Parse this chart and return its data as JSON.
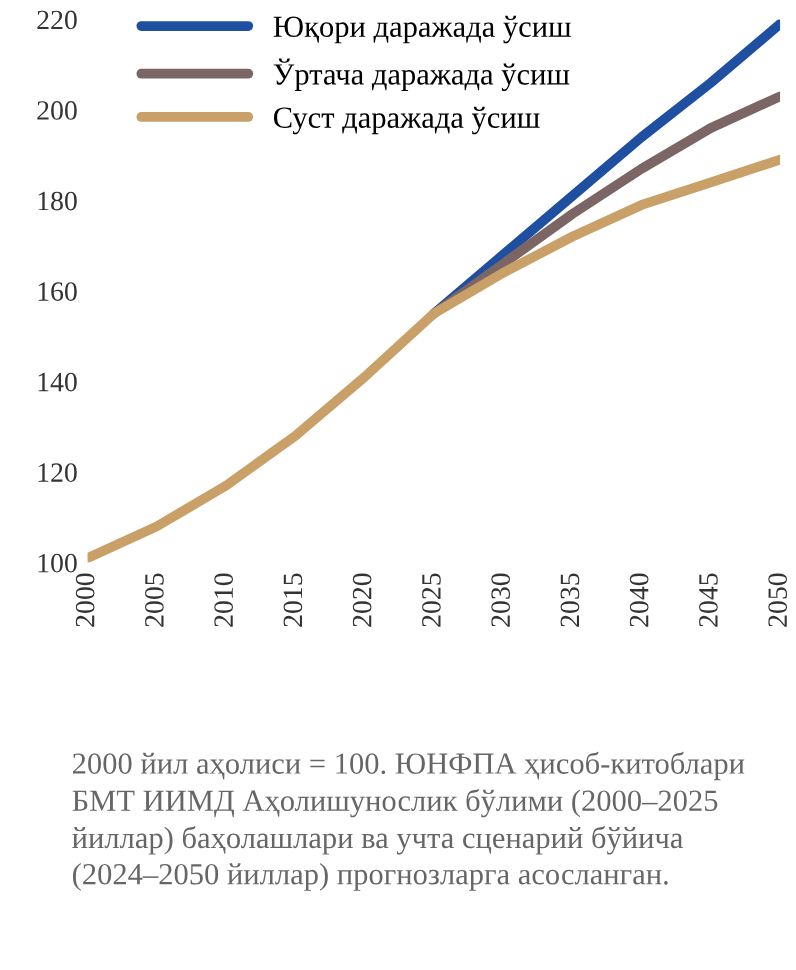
{
  "chart_data": {
    "type": "line",
    "x": [
      2000,
      2005,
      2010,
      2015,
      2020,
      2025,
      2030,
      2035,
      2040,
      2045,
      2050
    ],
    "series": [
      {
        "name": "Юқори даражада ўсиш",
        "color": "#1f4fa0",
        "values": [
          null,
          null,
          null,
          null,
          null,
          155,
          168,
          181,
          194,
          206,
          219
        ]
      },
      {
        "name": "Ўртача даражада ўсиш",
        "color": "#7b6565",
        "values": [
          null,
          null,
          null,
          null,
          null,
          155,
          166,
          177,
          187,
          196,
          203
        ]
      },
      {
        "name": "Суст даражада ўсиш",
        "color": "#c9a068",
        "values": [
          101,
          108,
          117,
          128,
          141,
          155,
          164,
          172,
          179,
          184,
          189
        ]
      }
    ],
    "xlim": [
      2000,
      2050
    ],
    "xticks": [
      2000,
      2005,
      2010,
      2015,
      2020,
      2025,
      2030,
      2035,
      2040,
      2045,
      2050
    ],
    "ylim": [
      100,
      220
    ],
    "yticks": [
      100,
      120,
      140,
      160,
      180,
      200,
      220
    ],
    "grid": false,
    "legend": "top left",
    "marker": "none",
    "line_style": "solid",
    "annotations": [
      "2000 йил аҳолиси = 100. ЮНФПА ҳисоб-китоблари БМТ ИИМД Аҳолишунослик бўлими (2000–2025 йиллар) баҳолашлари ва учта сценарий бўйича (2024–2050 йиллар) прогнозларга асосланган."
    ]
  }
}
